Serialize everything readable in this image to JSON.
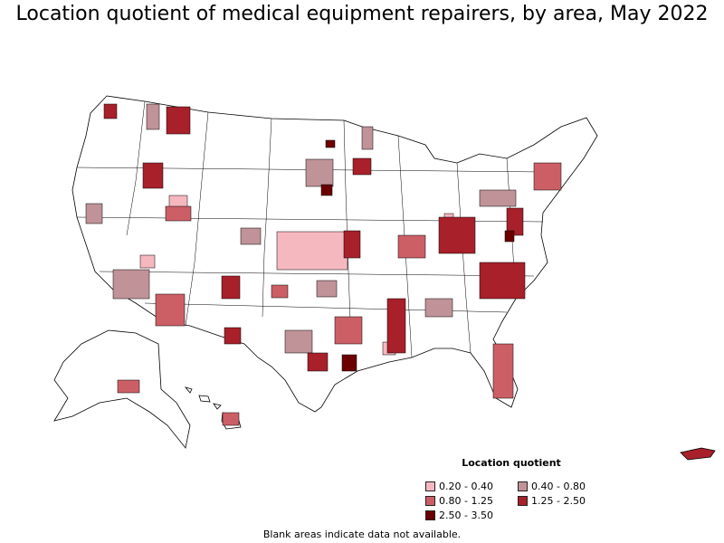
{
  "title": "Location quotient of medical equipment repairers, by area, May 2022",
  "legend": {
    "title": "Location quotient",
    "items": [
      {
        "label": "0.20 - 0.40",
        "color": "#f6b8bf"
      },
      {
        "label": "0.40 - 0.80",
        "color": "#c09398"
      },
      {
        "label": "0.80 - 1.25",
        "color": "#cc5f66"
      },
      {
        "label": "1.25 - 2.50",
        "color": "#a8202a"
      },
      {
        "label": "2.50 - 3.50",
        "color": "#6b0000"
      }
    ]
  },
  "note": "Blank areas indicate data not available.",
  "colors": {
    "border": "#000000",
    "no_data": "#ffffff",
    "background": "#ffffff"
  }
}
